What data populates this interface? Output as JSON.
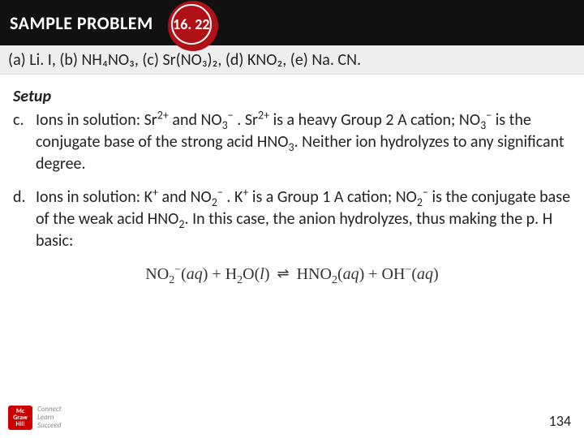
{
  "header": {
    "label": "SAMPLE PROBLEM",
    "number": "16. 22"
  },
  "question_line": "(a)  Li. I,  (b) NH₄NO₃, (c) Sr(NO₃)₂, (d) KNO₂, (e) Na. CN.",
  "setup_title": "Setup",
  "items": [
    {
      "marker": "c.",
      "html": "Ions in solution: Sr<sup>2+</sup> and NO<sub>3</sub><sup>−</sup> . Sr<sup>2+</sup> is a heavy Group 2 A cation; NO<sub>3</sub><sup>−</sup> is the conjugate base of the strong acid HNO<sub>3</sub>. Neither ion hydrolyzes to any significant degree."
    },
    {
      "marker": "d.",
      "html": "Ions in solution: K<sup>+</sup> and NO<sub>2</sub><sup>−</sup> . K<sup>+</sup> is a Group 1 A cation; NO<sub>2</sub><sup>−</sup> is the conjugate base of the weak acid HNO<sub>2</sub>. In this case, the anion hydrolyzes, thus making the p. H basic:"
    }
  ],
  "equation_html": "NO<sub>2</sub><sup>−</sup>(<i>aq</i>) + H<sub>2</sub>O(<i>l</i>) <span class=\"eq-arrow\">⇌</span> HNO<sub>2</sub>(<i>aq</i>) + OH<sup>−</sup>(<i>aq</i>)",
  "footer": {
    "publisher_top": "Mc",
    "publisher_mid": "Graw",
    "publisher_bot": "Hill",
    "tagline1": "Connect",
    "tagline2": "Learn",
    "tagline3": "Succeed"
  },
  "page_number": "134"
}
